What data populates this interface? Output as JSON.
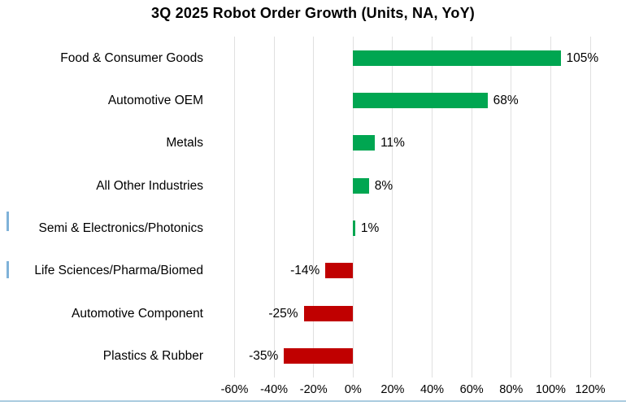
{
  "title": "3Q 2025 Robot Order Growth (Units, NA, YoY)",
  "chart_data": {
    "type": "bar",
    "orientation": "horizontal",
    "title": "3Q 2025 Robot Order Growth (Units, NA, YoY)",
    "categories": [
      "Food & Consumer Goods",
      "Automotive OEM",
      "Metals",
      "All Other Industries",
      "Semi & Electronics/Photonics",
      "Life Sciences/Pharma/Biomed",
      "Automotive Component",
      "Plastics & Rubber"
    ],
    "values": [
      105,
      68,
      11,
      8,
      1,
      -14,
      -25,
      -35
    ],
    "value_labels": [
      "105%",
      "68%",
      "11%",
      "8%",
      "1%",
      "-14%",
      "-25%",
      "-35%"
    ],
    "xlim": [
      -60,
      120
    ],
    "x_ticks": [
      -60,
      -40,
      -20,
      0,
      20,
      40,
      60,
      80,
      100,
      120
    ],
    "x_tick_labels": [
      "-60%",
      "-40%",
      "-20%",
      "0%",
      "20%",
      "40%",
      "60%",
      "80%",
      "100%",
      "120%"
    ],
    "grid": true,
    "legend": "none",
    "positive_color": "#00A651",
    "negative_color": "#C00000",
    "gridline_color": "#E0E0E0",
    "text_color": "#000000"
  },
  "decorations": {
    "bottom_rule_color": "#A9CBDF",
    "side_mark_color": "#7FB2D9"
  }
}
